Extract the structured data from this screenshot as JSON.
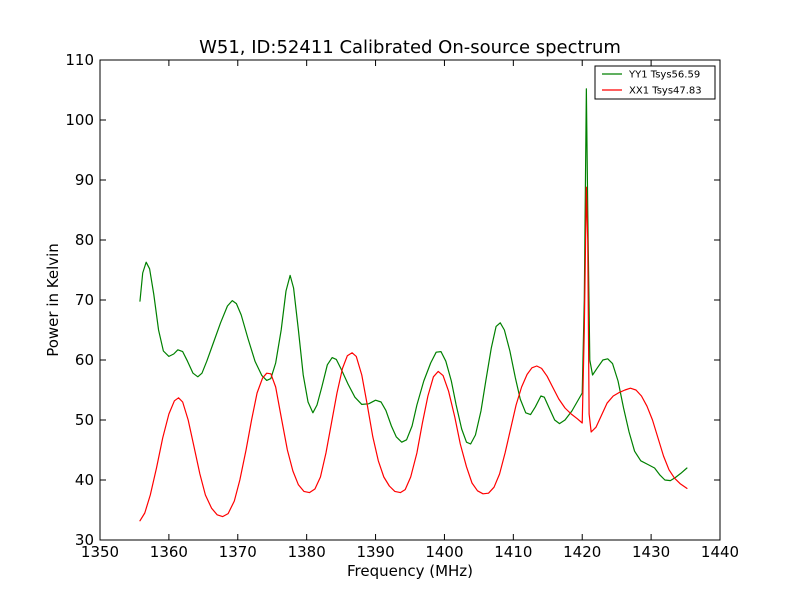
{
  "chart_data": {
    "type": "line",
    "title": "W51, ID:52411 Calibrated On-source spectrum",
    "xlabel": "Frequency (MHz)",
    "ylabel": "Power in Kelvin",
    "xlim": [
      1350,
      1440
    ],
    "ylim": [
      30,
      110
    ],
    "xticks": [
      1350,
      1360,
      1370,
      1380,
      1390,
      1400,
      1410,
      1420,
      1430,
      1440
    ],
    "yticks": [
      30,
      40,
      50,
      60,
      70,
      80,
      90,
      100,
      110
    ],
    "legend_position": "top-right",
    "series": [
      {
        "name": "YY1 Tsys56.59",
        "color": "#008000",
        "points": [
          [
            1355.8,
            69.8
          ],
          [
            1356.2,
            74.5
          ],
          [
            1356.7,
            76.3
          ],
          [
            1357.2,
            75.2
          ],
          [
            1357.8,
            71.0
          ],
          [
            1358.5,
            65.0
          ],
          [
            1359.2,
            61.5
          ],
          [
            1360.0,
            60.6
          ],
          [
            1360.7,
            61.0
          ],
          [
            1361.3,
            61.7
          ],
          [
            1362.0,
            61.4
          ],
          [
            1362.7,
            59.8
          ],
          [
            1363.5,
            57.8
          ],
          [
            1364.2,
            57.2
          ],
          [
            1364.8,
            57.8
          ],
          [
            1365.5,
            59.8
          ],
          [
            1366.5,
            63.0
          ],
          [
            1367.5,
            66.2
          ],
          [
            1368.5,
            69.0
          ],
          [
            1369.2,
            69.9
          ],
          [
            1369.8,
            69.4
          ],
          [
            1370.5,
            67.5
          ],
          [
            1371.5,
            63.5
          ],
          [
            1372.5,
            59.8
          ],
          [
            1373.5,
            57.4
          ],
          [
            1374.2,
            56.6
          ],
          [
            1374.8,
            56.9
          ],
          [
            1375.5,
            59.5
          ],
          [
            1376.3,
            65.0
          ],
          [
            1377.0,
            71.5
          ],
          [
            1377.6,
            74.1
          ],
          [
            1378.1,
            72.0
          ],
          [
            1378.8,
            65.0
          ],
          [
            1379.5,
            57.5
          ],
          [
            1380.2,
            53.0
          ],
          [
            1380.9,
            51.2
          ],
          [
            1381.5,
            52.5
          ],
          [
            1382.2,
            55.5
          ],
          [
            1383.0,
            59.2
          ],
          [
            1383.7,
            60.4
          ],
          [
            1384.3,
            60.1
          ],
          [
            1385.0,
            58.5
          ],
          [
            1386.0,
            56.0
          ],
          [
            1387.0,
            53.8
          ],
          [
            1388.0,
            52.6
          ],
          [
            1389.0,
            52.7
          ],
          [
            1390.0,
            53.3
          ],
          [
            1390.8,
            53.0
          ],
          [
            1391.5,
            51.6
          ],
          [
            1392.3,
            49.0
          ],
          [
            1393.0,
            47.2
          ],
          [
            1393.8,
            46.3
          ],
          [
            1394.5,
            46.7
          ],
          [
            1395.3,
            49.0
          ],
          [
            1396.0,
            52.5
          ],
          [
            1397.0,
            56.5
          ],
          [
            1398.0,
            59.5
          ],
          [
            1398.8,
            61.3
          ],
          [
            1399.5,
            61.4
          ],
          [
            1400.2,
            59.8
          ],
          [
            1401.0,
            56.5
          ],
          [
            1401.7,
            52.5
          ],
          [
            1402.5,
            48.5
          ],
          [
            1403.2,
            46.3
          ],
          [
            1403.8,
            46.0
          ],
          [
            1404.5,
            47.5
          ],
          [
            1405.3,
            51.5
          ],
          [
            1406.0,
            56.5
          ],
          [
            1406.8,
            62.0
          ],
          [
            1407.5,
            65.6
          ],
          [
            1408.1,
            66.2
          ],
          [
            1408.7,
            65.0
          ],
          [
            1409.5,
            61.5
          ],
          [
            1410.3,
            57.0
          ],
          [
            1411.0,
            53.5
          ],
          [
            1411.8,
            51.2
          ],
          [
            1412.5,
            50.9
          ],
          [
            1413.2,
            52.2
          ],
          [
            1414.0,
            54.0
          ],
          [
            1414.5,
            53.8
          ],
          [
            1415.2,
            52.0
          ],
          [
            1416.0,
            50.0
          ],
          [
            1416.7,
            49.4
          ],
          [
            1417.5,
            50.0
          ],
          [
            1418.5,
            51.5
          ],
          [
            1419.5,
            53.5
          ],
          [
            1420.0,
            54.5
          ],
          [
            1420.3,
            70.0
          ],
          [
            1420.6,
            105.2
          ],
          [
            1420.8,
            85.0
          ],
          [
            1421.1,
            60.0
          ],
          [
            1421.5,
            57.5
          ],
          [
            1422.2,
            58.7
          ],
          [
            1423.0,
            60.0
          ],
          [
            1423.7,
            60.2
          ],
          [
            1424.4,
            59.4
          ],
          [
            1425.2,
            56.5
          ],
          [
            1426.0,
            52.0
          ],
          [
            1426.8,
            48.0
          ],
          [
            1427.6,
            44.8
          ],
          [
            1428.5,
            43.2
          ],
          [
            1429.5,
            42.6
          ],
          [
            1430.5,
            42.0
          ],
          [
            1431.3,
            40.8
          ],
          [
            1432.0,
            40.0
          ],
          [
            1432.8,
            39.9
          ],
          [
            1433.5,
            40.4
          ],
          [
            1434.3,
            41.1
          ],
          [
            1435.2,
            42.0
          ]
        ]
      },
      {
        "name": "XX1 Tsys47.83",
        "color": "#ff0000",
        "points": [
          [
            1355.8,
            33.2
          ],
          [
            1356.5,
            34.5
          ],
          [
            1357.3,
            37.5
          ],
          [
            1358.2,
            42.0
          ],
          [
            1359.1,
            47.0
          ],
          [
            1360.0,
            51.0
          ],
          [
            1360.8,
            53.2
          ],
          [
            1361.4,
            53.7
          ],
          [
            1362.0,
            53.0
          ],
          [
            1362.8,
            50.0
          ],
          [
            1363.6,
            45.8
          ],
          [
            1364.5,
            41.0
          ],
          [
            1365.3,
            37.5
          ],
          [
            1366.2,
            35.3
          ],
          [
            1367.0,
            34.2
          ],
          [
            1367.8,
            33.9
          ],
          [
            1368.6,
            34.4
          ],
          [
            1369.5,
            36.5
          ],
          [
            1370.3,
            40.0
          ],
          [
            1371.2,
            45.0
          ],
          [
            1372.0,
            50.0
          ],
          [
            1372.8,
            54.5
          ],
          [
            1373.6,
            57.0
          ],
          [
            1374.2,
            57.8
          ],
          [
            1374.8,
            57.7
          ],
          [
            1375.5,
            55.5
          ],
          [
            1376.3,
            50.5
          ],
          [
            1377.2,
            45.0
          ],
          [
            1378.0,
            41.5
          ],
          [
            1378.8,
            39.2
          ],
          [
            1379.6,
            38.1
          ],
          [
            1380.4,
            37.9
          ],
          [
            1381.2,
            38.5
          ],
          [
            1382.0,
            40.5
          ],
          [
            1382.8,
            44.5
          ],
          [
            1383.6,
            49.5
          ],
          [
            1384.4,
            54.5
          ],
          [
            1385.2,
            58.6
          ],
          [
            1385.9,
            60.7
          ],
          [
            1386.6,
            61.2
          ],
          [
            1387.2,
            60.6
          ],
          [
            1388.0,
            57.5
          ],
          [
            1388.8,
            52.5
          ],
          [
            1389.6,
            47.2
          ],
          [
            1390.4,
            43.2
          ],
          [
            1391.2,
            40.5
          ],
          [
            1392.0,
            39.0
          ],
          [
            1392.8,
            38.1
          ],
          [
            1393.6,
            37.9
          ],
          [
            1394.3,
            38.4
          ],
          [
            1395.1,
            40.5
          ],
          [
            1396.0,
            44.5
          ],
          [
            1396.8,
            49.5
          ],
          [
            1397.6,
            54.0
          ],
          [
            1398.4,
            57.2
          ],
          [
            1399.1,
            58.1
          ],
          [
            1399.8,
            57.4
          ],
          [
            1400.6,
            54.8
          ],
          [
            1401.5,
            50.5
          ],
          [
            1402.3,
            46.0
          ],
          [
            1403.2,
            42.2
          ],
          [
            1404.0,
            39.5
          ],
          [
            1404.8,
            38.2
          ],
          [
            1405.6,
            37.7
          ],
          [
            1406.4,
            37.8
          ],
          [
            1407.2,
            38.8
          ],
          [
            1408.0,
            41.0
          ],
          [
            1408.8,
            44.5
          ],
          [
            1409.6,
            48.5
          ],
          [
            1410.4,
            52.5
          ],
          [
            1411.2,
            55.5
          ],
          [
            1412.0,
            57.6
          ],
          [
            1412.7,
            58.7
          ],
          [
            1413.4,
            59.0
          ],
          [
            1414.1,
            58.6
          ],
          [
            1414.9,
            57.3
          ],
          [
            1415.7,
            55.5
          ],
          [
            1416.6,
            53.5
          ],
          [
            1417.5,
            52.0
          ],
          [
            1418.4,
            51.0
          ],
          [
            1419.3,
            50.2
          ],
          [
            1420.0,
            49.5
          ],
          [
            1420.3,
            65.0
          ],
          [
            1420.6,
            88.8
          ],
          [
            1420.8,
            80.0
          ],
          [
            1421.0,
            51.0
          ],
          [
            1421.3,
            48.0
          ],
          [
            1422.0,
            48.8
          ],
          [
            1422.8,
            50.8
          ],
          [
            1423.6,
            52.8
          ],
          [
            1424.5,
            54.0
          ],
          [
            1425.4,
            54.6
          ],
          [
            1426.2,
            55.0
          ],
          [
            1427.0,
            55.3
          ],
          [
            1427.8,
            55.0
          ],
          [
            1428.6,
            54.0
          ],
          [
            1429.4,
            52.3
          ],
          [
            1430.2,
            50.0
          ],
          [
            1431.0,
            47.0
          ],
          [
            1431.8,
            44.0
          ],
          [
            1432.6,
            41.7
          ],
          [
            1433.4,
            40.3
          ],
          [
            1434.2,
            39.4
          ],
          [
            1435.2,
            38.6
          ]
        ]
      }
    ]
  }
}
